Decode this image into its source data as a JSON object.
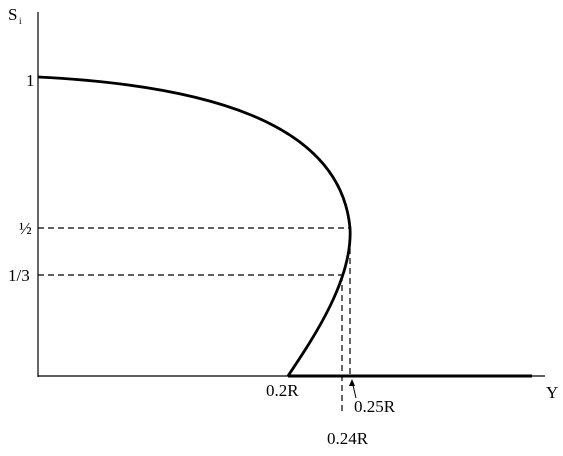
{
  "axes": {
    "y_label": "S",
    "y_label_subscript": "i",
    "x_label": "Y"
  },
  "y_labels": [
    "1",
    "½",
    "1/3"
  ],
  "x_labels": [
    "0.2R",
    "0.25R",
    "0.24R"
  ]
}
